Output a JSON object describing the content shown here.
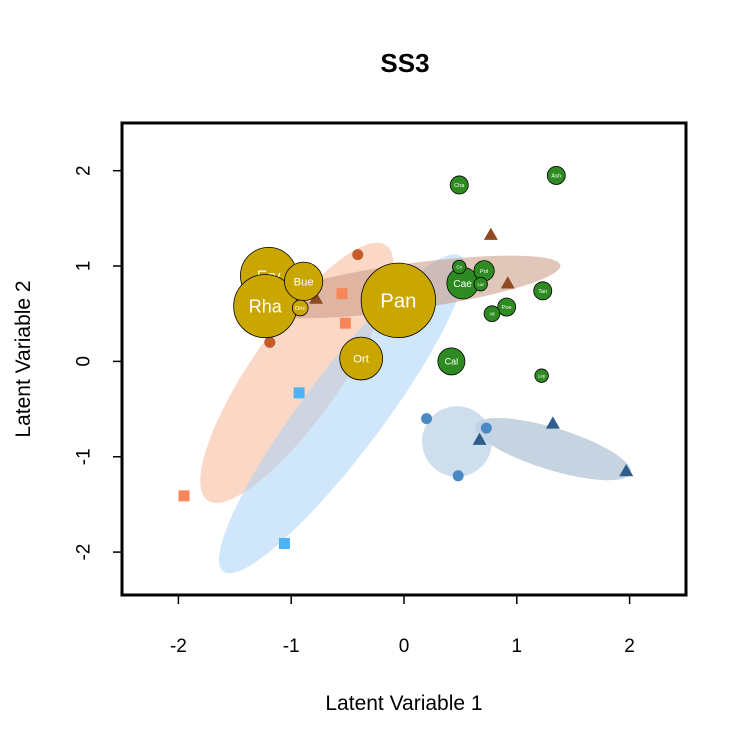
{
  "chart_data": {
    "type": "scatter",
    "title": "SS3",
    "xlabel": "Latent Variable 1",
    "ylabel": "Latent Variable 2",
    "xlim": [
      -2.5,
      2.5
    ],
    "ylim": [
      -2.45,
      2.5
    ],
    "x_ticks": [
      "-2",
      "-1",
      "0",
      "1",
      "2"
    ],
    "y_ticks": [
      "-2",
      "-1",
      "0",
      "1",
      "2"
    ],
    "grid": false,
    "legend": "none",
    "colors": {
      "gold": "#C9A600",
      "green": "#2E8B22",
      "salmon": "#F7875B",
      "sky": "#4DB3F5",
      "rust": "#C55A2C",
      "brown": "#8F4A22",
      "steel": "#4A8AC4",
      "navy": "#2F5E8C"
    },
    "ellipses": [
      {
        "color": "#F7A67E",
        "opacity": 0.45,
        "cx": -0.95,
        "cy": -0.12,
        "rx": 1.38,
        "ry": 0.47,
        "angle_deg": 55
      },
      {
        "color": "#A9D3F7",
        "opacity": 0.55,
        "cx": -0.55,
        "cy": -0.55,
        "rx": 1.75,
        "ry": 0.42,
        "angle_deg": 53
      },
      {
        "color": "#C99882",
        "opacity": 0.55,
        "cx": 0.02,
        "cy": 0.78,
        "rx": 1.38,
        "ry": 0.24,
        "angle_deg": 8
      },
      {
        "color": "#A7BDD3",
        "opacity": 0.65,
        "cx": 1.32,
        "cy": -0.92,
        "rx": 0.72,
        "ry": 0.22,
        "angle_deg": -17
      },
      {
        "color": "#BFD3E6",
        "opacity": 0.75,
        "cx": 0.47,
        "cy": -0.84,
        "rx": 0.31,
        "ry": 0.37,
        "angle_deg": 0
      }
    ],
    "site_points": [
      {
        "shape": "square",
        "color": "#F7875B",
        "x": -0.55,
        "y": 0.71
      },
      {
        "shape": "square",
        "color": "#F7875B",
        "x": -0.52,
        "y": 0.4
      },
      {
        "shape": "square",
        "color": "#F7875B",
        "x": -1.95,
        "y": -1.41
      },
      {
        "shape": "square",
        "color": "#4DB3F5",
        "x": -0.93,
        "y": -0.33
      },
      {
        "shape": "square",
        "color": "#4DB3F5",
        "x": -1.06,
        "y": -1.91
      },
      {
        "shape": "circle",
        "color": "#C55A2C",
        "x": -0.41,
        "y": 1.12
      },
      {
        "shape": "circle",
        "color": "#C55A2C",
        "x": -1.19,
        "y": 0.2
      },
      {
        "shape": "circle",
        "color": "#4A8AC4",
        "x": 0.2,
        "y": -0.6
      },
      {
        "shape": "circle",
        "color": "#4A8AC4",
        "x": 0.73,
        "y": -0.7
      },
      {
        "shape": "circle",
        "color": "#4A8AC4",
        "x": 0.48,
        "y": -1.2
      },
      {
        "shape": "triangle",
        "color": "#8F4A22",
        "x": -0.78,
        "y": 0.66
      },
      {
        "shape": "triangle",
        "color": "#8F4A22",
        "x": 0.77,
        "y": 1.33
      },
      {
        "shape": "triangle",
        "color": "#8F4A22",
        "x": 0.92,
        "y": 0.82
      },
      {
        "shape": "triangle",
        "color": "#2F5E8C",
        "x": 0.67,
        "y": -0.82
      },
      {
        "shape": "triangle",
        "color": "#2F5E8C",
        "x": 1.32,
        "y": -0.65
      },
      {
        "shape": "triangle",
        "color": "#2F5E8C",
        "x": 1.97,
        "y": -1.15
      }
    ],
    "genus_points": [
      {
        "label": "Pan",
        "color": "#C9A600",
        "x": -0.05,
        "y": 0.64,
        "r": 0.33,
        "font": 0.18
      },
      {
        "label": "Ery",
        "color": "#C9A600",
        "x": -1.2,
        "y": 0.9,
        "r": 0.25,
        "font": 0.14
      },
      {
        "label": "Rha",
        "color": "#C9A600",
        "x": -1.23,
        "y": 0.58,
        "r": 0.28,
        "font": 0.16
      },
      {
        "label": "Bue",
        "color": "#C9A600",
        "x": -0.89,
        "y": 0.84,
        "r": 0.17,
        "font": 0.1
      },
      {
        "label": "Ortc",
        "color": "#C9A600",
        "x": -0.92,
        "y": 0.56,
        "r": 0.07,
        "font": 0.05
      },
      {
        "label": "Ort",
        "color": "#C9A600",
        "x": -0.38,
        "y": 0.03,
        "r": 0.19,
        "font": 0.1
      },
      {
        "label": "Cae",
        "color": "#2E8B22",
        "x": 0.52,
        "y": 0.82,
        "r": 0.14,
        "font": 0.09
      },
      {
        "label": "Cal",
        "color": "#2E8B22",
        "x": 0.42,
        "y": 0.0,
        "r": 0.12,
        "font": 0.08
      },
      {
        "label": "Cha",
        "color": "#2E8B22",
        "x": 0.49,
        "y": 1.85,
        "r": 0.08,
        "font": 0.05
      },
      {
        "label": "Ash",
        "color": "#2E8B22",
        "x": 1.35,
        "y": 1.95,
        "r": 0.08,
        "font": 0.05
      },
      {
        "label": "Pol",
        "color": "#2E8B22",
        "x": 0.71,
        "y": 0.95,
        "r": 0.09,
        "font": 0.05
      },
      {
        "label": "Poe",
        "color": "#2E8B22",
        "x": 0.91,
        "y": 0.57,
        "r": 0.08,
        "font": 0.05
      },
      {
        "label": "Tan",
        "color": "#2E8B22",
        "x": 1.23,
        "y": 0.74,
        "r": 0.08,
        "font": 0.05
      },
      {
        "label": "Ali",
        "color": "#2E8B22",
        "x": 0.78,
        "y": 0.5,
        "r": 0.07,
        "font": 0.04
      },
      {
        "label": "Gn",
        "color": "#2E8B22",
        "x": 0.49,
        "y": 0.99,
        "r": 0.06,
        "font": 0.04
      },
      {
        "label": "Lar",
        "color": "#2E8B22",
        "x": 0.68,
        "y": 0.81,
        "r": 0.06,
        "font": 0.04
      },
      {
        "label": "Lep",
        "color": "#2E8B22",
        "x": 1.22,
        "y": -0.15,
        "r": 0.06,
        "font": 0.04
      }
    ]
  }
}
